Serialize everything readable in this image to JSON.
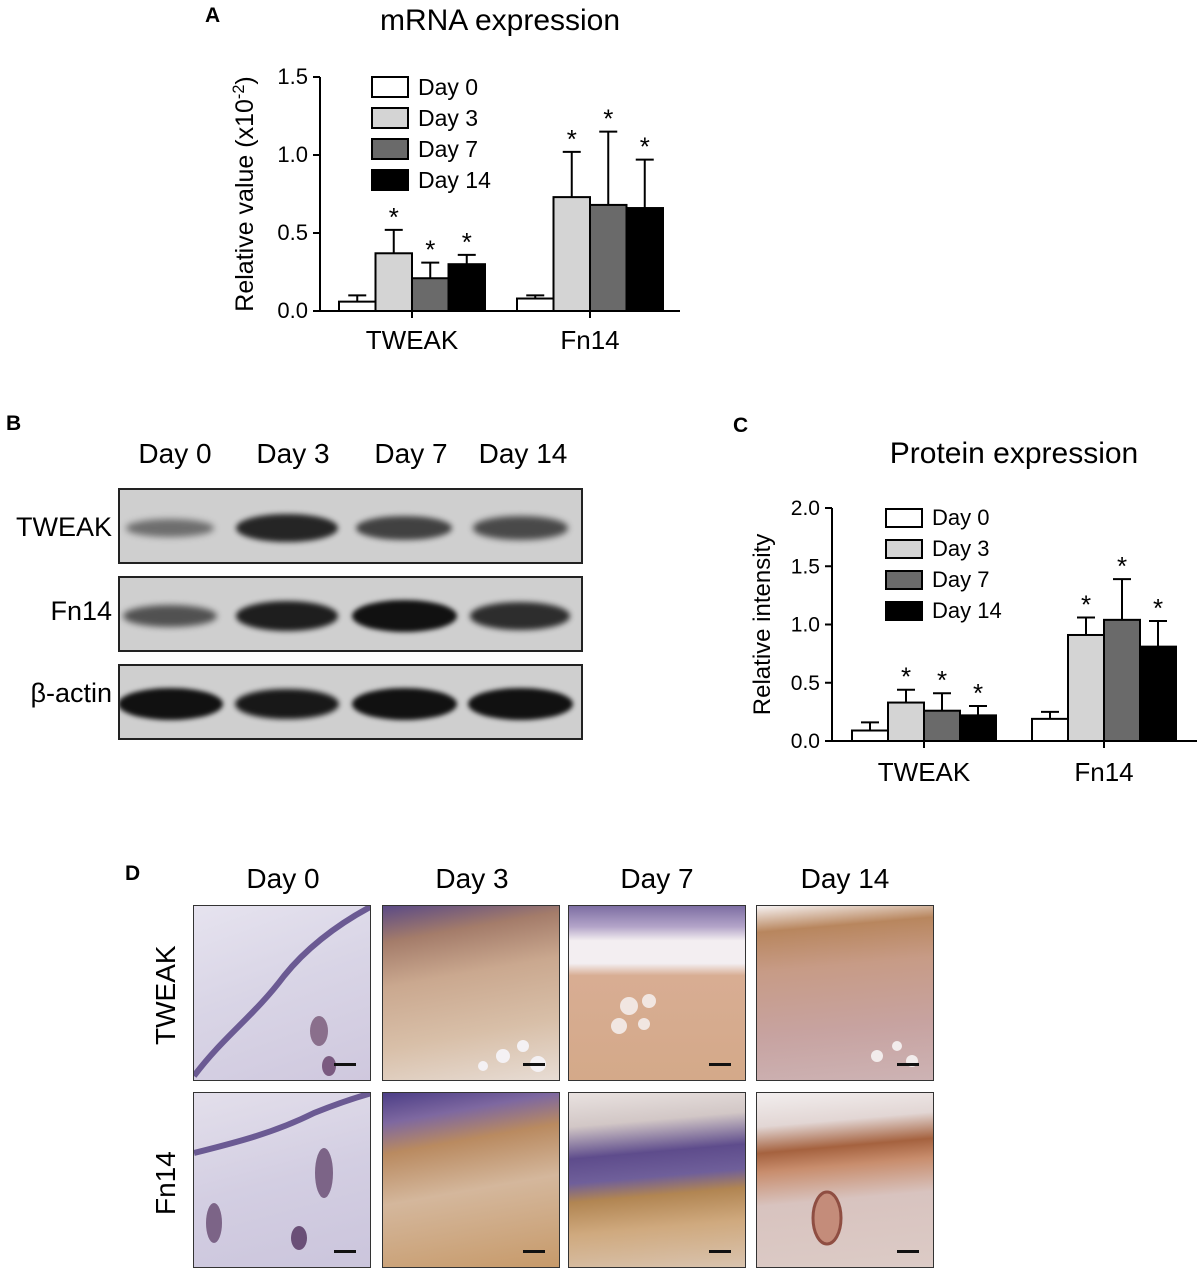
{
  "panels": {
    "a": "A",
    "b": "B",
    "c": "C",
    "d": "D"
  },
  "chart_data": [
    {
      "type": "bar",
      "panel": "A",
      "title": "mRNA expression",
      "ylabel_main": "Relative value (x10",
      "ylabel_sup": "-2",
      "ylabel_end": ")",
      "ylim": [
        0,
        1.5
      ],
      "yticks": [
        "0.0",
        "0.5",
        "1.0",
        "1.5"
      ],
      "categories": [
        "TWEAK",
        "Fn14"
      ],
      "legend_position": "top-left",
      "series": [
        {
          "name": "Day 0",
          "color": "#ffffff",
          "values": [
            0.06,
            0.08
          ],
          "errors": [
            0.04,
            0.02
          ],
          "sig": [
            "",
            ""
          ]
        },
        {
          "name": "Day 3",
          "color": "#d4d4d4",
          "values": [
            0.37,
            0.73
          ],
          "errors": [
            0.15,
            0.29
          ],
          "sig": [
            "*",
            "*"
          ]
        },
        {
          "name": "Day 7",
          "color": "#6a6a6a",
          "values": [
            0.21,
            0.68
          ],
          "errors": [
            0.1,
            0.47
          ],
          "sig": [
            "*",
            "*"
          ]
        },
        {
          "name": "Day 14",
          "color": "#000000",
          "values": [
            0.3,
            0.66
          ],
          "errors": [
            0.06,
            0.31
          ],
          "sig": [
            "*",
            "*"
          ]
        }
      ]
    },
    {
      "type": "bar",
      "panel": "C",
      "title": "Protein expression",
      "ylabel_main": "Relative intensity",
      "ylabel_sup": "",
      "ylabel_end": "",
      "ylim": [
        0,
        2.0
      ],
      "yticks": [
        "0.0",
        "0.5",
        "1.0",
        "1.5",
        "2.0"
      ],
      "categories": [
        "TWEAK",
        "Fn14"
      ],
      "legend_position": "top-left",
      "series": [
        {
          "name": "Day 0",
          "color": "#ffffff",
          "values": [
            0.09,
            0.19
          ],
          "errors": [
            0.07,
            0.06
          ],
          "sig": [
            "",
            ""
          ]
        },
        {
          "name": "Day 3",
          "color": "#d4d4d4",
          "values": [
            0.33,
            0.91
          ],
          "errors": [
            0.11,
            0.15
          ],
          "sig": [
            "*",
            "*"
          ]
        },
        {
          "name": "Day 7",
          "color": "#6a6a6a",
          "values": [
            0.26,
            1.04
          ],
          "errors": [
            0.15,
            0.35
          ],
          "sig": [
            "*",
            "*"
          ]
        },
        {
          "name": "Day 14",
          "color": "#000000",
          "values": [
            0.22,
            0.81
          ],
          "errors": [
            0.08,
            0.22
          ],
          "sig": [
            "*",
            "*"
          ]
        }
      ]
    }
  ],
  "western_blot": {
    "columns": [
      "Day 0",
      "Day 3",
      "Day 7",
      "Day 14"
    ],
    "rows": [
      {
        "label": "TWEAK",
        "intensities": [
          0.35,
          0.85,
          0.65,
          0.6
        ]
      },
      {
        "label": "Fn14",
        "intensities": [
          0.55,
          0.9,
          1.0,
          0.8
        ]
      },
      {
        "label": "β-actin",
        "intensities": [
          1.0,
          0.95,
          1.0,
          1.0
        ]
      }
    ]
  },
  "ihc": {
    "columns": [
      "Day 0",
      "Day 3",
      "Day 7",
      "Day 14"
    ],
    "rows": [
      "TWEAK",
      "Fn14"
    ]
  }
}
